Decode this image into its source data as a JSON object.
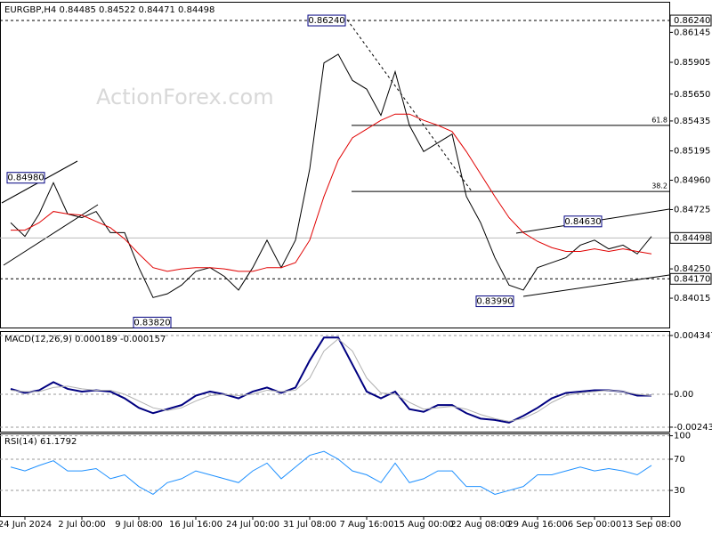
{
  "chart_data": [
    {
      "type": "line",
      "title": "EURGBP,H4  0.84485 0.84522 0.84471 0.84498",
      "watermark": "ActionForex.com",
      "ylim": [
        0.8378,
        0.8639
      ],
      "yticks": [
        0.86145,
        0.85905,
        {
          "value": 0.8565,
          "label": "0.85650"
        },
        0.85435,
        0.85195,
        {
          "value": 0.8496,
          "label": "0.84960"
        },
        0.84725,
        {
          "value": 0.8425,
          "label": "0.84250"
        },
        0.84015
      ],
      "series": [
        {
          "color": "#000000",
          "values": [
            0.8462,
            0.8451,
            0.8469,
            0.8494,
            0.8469,
            0.8466,
            0.8471,
            0.8454,
            0.8454,
            0.8426,
            0.8402,
            0.8405,
            0.8412,
            0.8423,
            0.8426,
            0.8419,
            0.8408,
            0.8426,
            0.8448,
            0.8426,
            0.8448,
            0.8505,
            0.859,
            0.8597,
            0.8576,
            0.8569,
            0.8548,
            0.8583,
            0.854,
            0.8519,
            0.8526,
            0.8533,
            0.8483,
            0.8462,
            0.8434,
            0.8412,
            0.8408,
            0.8426,
            0.843,
            0.8434,
            0.8444,
            0.8448,
            0.8441,
            0.8444,
            0.8437,
            0.8451
          ]
        },
        {
          "color": "#e00000",
          "values": [
            0.8456,
            0.8456,
            0.8462,
            0.8471,
            0.8469,
            0.8468,
            0.8463,
            0.8458,
            0.8449,
            0.8437,
            0.8426,
            0.8423,
            0.8425,
            0.8426,
            0.8426,
            0.8425,
            0.8423,
            0.8423,
            0.8426,
            0.8426,
            0.843,
            0.8448,
            0.8483,
            0.8512,
            0.853,
            0.8537,
            0.8544,
            0.8549,
            0.8549,
            0.8544,
            0.854,
            0.8535,
            0.8519,
            0.8501,
            0.8483,
            0.8466,
            0.8454,
            0.8447,
            0.8442,
            0.8439,
            0.8439,
            0.8441,
            0.8439,
            0.8441,
            0.8439,
            0.8437
          ]
        }
      ],
      "price_lines": [
        {
          "value": 0.8624,
          "label": "0.86240",
          "style": "dashed"
        },
        {
          "value": 0.84498,
          "label": "0.84498",
          "style": "solid"
        },
        {
          "value": 0.8417,
          "label": "0.84170",
          "style": "dashed"
        }
      ],
      "annotations": [
        {
          "value": 0.8498,
          "label": "0.84980"
        },
        {
          "value": 0.8624,
          "label": "0.86240"
        },
        {
          "value": 0.8382,
          "label": "0.83820"
        },
        {
          "value": 0.8463,
          "label": "0.84630"
        },
        {
          "value": 0.8399,
          "label": "0.83990"
        }
      ],
      "fib_levels": [
        {
          "ratio": 61.8,
          "price": 0.854
        },
        {
          "ratio": 38.2,
          "price": 0.8487
        }
      ]
    },
    {
      "type": "line",
      "title": "MACD(12,26,9) 0.000189 -0.000157",
      "ylim": [
        -0.002766,
        0.004676
      ],
      "yticks": [
        0.004347,
        {
          "value": 0,
          "label": "0.00"
        },
        -0.002434
      ],
      "grid": true,
      "series": [
        {
          "color": "#000080",
          "values": [
            0.0004,
            0.0001,
            0.0003,
            0.0009,
            0.0004,
            0.0002,
            0.0003,
            0.0002,
            -0.0003,
            -0.001,
            -0.0014,
            -0.0011,
            -0.0008,
            -0.0001,
            0.0002,
            0,
            -0.0003,
            0.0002,
            0.0005,
            0.0001,
            0.0005,
            0.0025,
            0.0042,
            0.0042,
            0.0022,
            0.0002,
            -0.0003,
            0.0002,
            -0.0011,
            -0.0013,
            -0.0008,
            -0.0008,
            -0.0014,
            -0.0018,
            -0.0019,
            -0.0021,
            -0.0016,
            -0.001,
            -0.0003,
            0.0001,
            0.0002,
            0.0003,
            0.0003,
            0.0002,
            -0.0001,
            -0.0001
          ]
        },
        {
          "color": "#b0b0b0",
          "values": [
            0.0003,
            0.0002,
            0.0002,
            0.0005,
            0.0006,
            0.0004,
            0.0003,
            0.0003,
            0,
            -0.0005,
            -0.001,
            -0.0012,
            -0.001,
            -0.0005,
            -0.0001,
            0,
            -0.0001,
            0,
            0.0003,
            0.0002,
            0.0003,
            0.0012,
            0.0032,
            0.0041,
            0.0032,
            0.0012,
            0.0001,
            0,
            -0.0006,
            -0.0011,
            -0.001,
            -0.0009,
            -0.0011,
            -0.0015,
            -0.0018,
            -0.002,
            -0.0018,
            -0.0013,
            -0.0006,
            -0.0001,
            0.0001,
            0.0002,
            0.0003,
            0.0002,
            0,
            -0.0001
          ]
        }
      ]
    },
    {
      "type": "line",
      "title": "RSI(14) 61.1792",
      "ylim": [
        -3,
        103
      ],
      "yticks": [
        100,
        70,
        30
      ],
      "grid": true,
      "categories": [
        null,
        "24 Jun 2024",
        null,
        null,
        null,
        "2 Jul 00:00",
        null,
        null,
        null,
        "9 Jul 08:00",
        null,
        null,
        null,
        "16 Jul 16:00",
        null,
        null,
        null,
        "24 Jul 00:00",
        null,
        null,
        null,
        "31 Jul 08:00",
        null,
        null,
        null,
        "7 Aug 16:00",
        null,
        null,
        null,
        "15 Aug 00:00",
        null,
        null,
        null,
        "22 Aug 08:00",
        null,
        null,
        null,
        "29 Aug 16:00",
        null,
        null,
        null,
        "6 Sep 00:00",
        null,
        null,
        null,
        "13 Sep 08:00"
      ],
      "series": [
        {
          "color": "#1e90ff",
          "values": [
            60,
            55,
            62,
            68,
            55,
            55,
            58,
            45,
            50,
            35,
            25,
            40,
            45,
            55,
            50,
            45,
            40,
            55,
            65,
            45,
            60,
            75,
            80,
            70,
            55,
            50,
            40,
            65,
            40,
            45,
            55,
            55,
            35,
            35,
            25,
            30,
            35,
            50,
            50,
            55,
            60,
            55,
            58,
            55,
            50,
            62
          ]
        }
      ]
    }
  ]
}
